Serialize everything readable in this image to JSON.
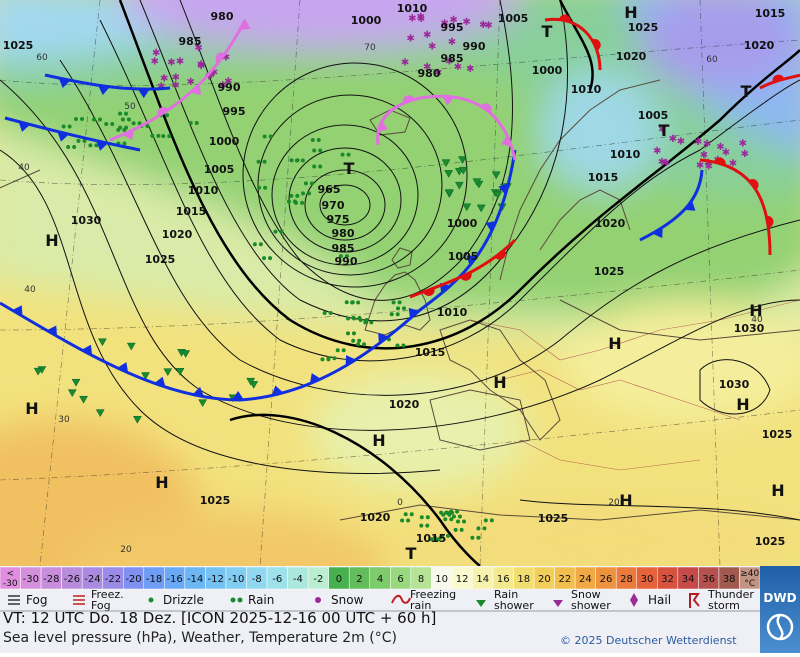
{
  "map": {
    "pressure_labels": [
      980,
      985,
      990,
      995,
      1000,
      1005,
      1010,
      1015,
      1020,
      1025,
      1030,
      1025,
      1000,
      1010,
      995,
      990,
      985,
      980,
      965,
      970,
      975,
      980,
      985,
      990,
      1000,
      1005,
      1010,
      1015,
      1020,
      1005,
      1000,
      1010,
      1005,
      1010,
      1015,
      1020,
      1025,
      1025,
      1020,
      1015,
      1020,
      1030,
      1030,
      1025,
      1025,
      1025,
      1025,
      1020,
      1015
    ],
    "centers": [
      "H",
      "H",
      "H",
      "H",
      "H",
      "H",
      "H",
      "H",
      "H",
      "H",
      "H",
      "T",
      "T",
      "T",
      "T",
      "T"
    ],
    "latitude_labels": [
      60,
      50,
      40,
      40,
      30,
      20,
      70,
      60,
      0,
      20,
      40
    ]
  },
  "legend": {
    "temperature_scale": {
      "below": "< -30",
      "below_color": "#e08ee0",
      "values": [
        -30,
        -28,
        -26,
        -24,
        -22,
        -20,
        -18,
        -16,
        -14,
        -12,
        -10,
        -8,
        -6,
        -4,
        -2,
        0,
        2,
        4,
        6,
        8,
        10,
        12,
        14,
        16,
        18,
        20,
        22,
        24,
        26,
        28,
        30,
        32,
        34,
        36,
        38
      ],
      "colors": [
        "#d590dc",
        "#c78ddb",
        "#b88bdc",
        "#a98ae0",
        "#9a8ce6",
        "#7f90f0",
        "#6f9cf5",
        "#6aa9f5",
        "#6cb6f4",
        "#74c2f3",
        "#82cef2",
        "#8fd8ef",
        "#9de1ea",
        "#aae8de",
        "#b9eed0",
        "#47b04f",
        "#62bd5a",
        "#7dcb6a",
        "#9ad87f",
        "#b6e497",
        "#f7f9ea",
        "#fafad0",
        "#f7f2ae",
        "#f4ea8d",
        "#f2de6f",
        "#f2cf58",
        "#f2be4c",
        "#f1a944",
        "#ef923e",
        "#eb7a3c",
        "#e5623b",
        "#d7523f",
        "#c84a48",
        "#b65150",
        "#a25a50"
      ],
      "above": "≥40 °C",
      "above_color": "#c29484"
    },
    "weather": [
      "Fog",
      "Freez. Fog",
      "Drizzle",
      "Rain",
      "Snow",
      "Freezing rain",
      "Rain shower",
      "Snow shower",
      "Hail",
      "Thunder storm"
    ]
  },
  "footer": {
    "valid_time": "VT: 12 UTC Do.  18 Dez. [ICON 2025-12-16  00 UTC + 60 h]",
    "subtitle": "Sea level pressure (hPa), Weather, Temperature 2m (°C)",
    "copyright": "© 2025 Deutscher Wetterdienst"
  },
  "logo": "DWD"
}
